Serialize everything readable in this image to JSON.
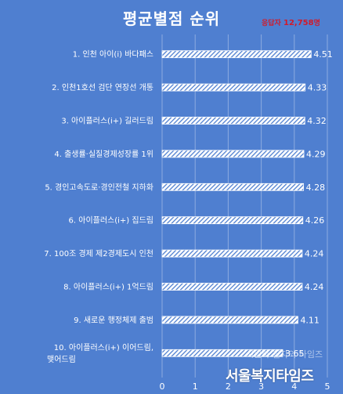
{
  "chart_data": {
    "type": "bar",
    "orientation": "horizontal",
    "title": "평균별점 순위",
    "respondents": {
      "label": "응답자",
      "count": "12,758",
      "unit": "명"
    },
    "categories": [
      "1. 인천 아이(i) 바다패스",
      "2. 인천1호선 검단 연장선 개통",
      "3. 아이플러스(i+) 길러드림",
      "4. 출생률·실질경제성장률 1위",
      "5. 경인고속도로·경인전철 지하화",
      "6. 아이플러스(i+) 집드림",
      "7. 100조 경제 제2경제도시 인천",
      "8. 아이플러스(i+) 1억드림",
      "9. 새로운 행정체제 출범",
      "10. 아이플러스(i+) 이어드림,\n맺어드림"
    ],
    "values": [
      4.51,
      4.33,
      4.32,
      4.29,
      4.28,
      4.26,
      4.24,
      4.24,
      4.11,
      3.65
    ],
    "value_labels": [
      "4.51",
      "4.33",
      "4.32",
      "4.29",
      "4.28",
      "4.26",
      "4.24",
      "4.24",
      "4.11",
      "3.65"
    ],
    "xlim": [
      0,
      5
    ],
    "xticks": [
      "0",
      "1",
      "2",
      "3",
      "4",
      "5"
    ],
    "grid": true,
    "colors": {
      "background": "#4f7fd0",
      "bar_fill": "#ffffff",
      "hatch": "#4f7fd0",
      "text": "#ffffff",
      "accent": "#d11a2a"
    }
  },
  "watermark": {
    "main": "서울복지타임즈",
    "sub": "시원하 칠자의 타임즈"
  }
}
